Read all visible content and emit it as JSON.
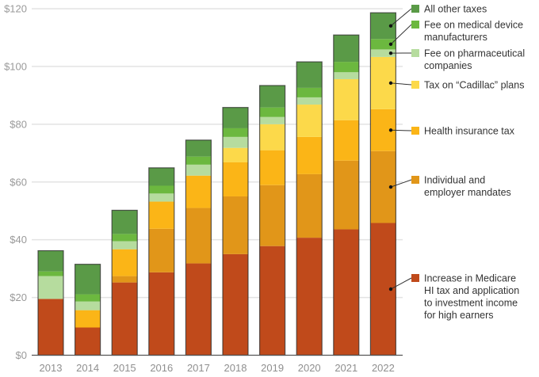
{
  "chart_data": {
    "type": "bar",
    "stacked": true,
    "title": "",
    "xlabel": "",
    "ylabel": "",
    "ylim": [
      0,
      120
    ],
    "yticks": [
      0,
      20,
      40,
      60,
      80,
      100,
      120
    ],
    "ytick_labels": [
      "$0",
      "$20",
      "$40",
      "$60",
      "$80",
      "$100",
      "$120"
    ],
    "grid": true,
    "legend_placement": "right",
    "categories": [
      "2013",
      "2014",
      "2015",
      "2016",
      "2017",
      "2018",
      "2019",
      "2020",
      "2021",
      "2022"
    ],
    "series": [
      {
        "name": "Increase in Medicare HI tax and application to investment income for high earners",
        "label_lines": [
          "Increase in Medicare",
          "HI tax and application",
          "to investment income",
          "for high earners"
        ],
        "color": "#c04a1b",
        "values": [
          19.5,
          9.6,
          25.2,
          28.7,
          31.8,
          35.0,
          37.8,
          40.7,
          43.6,
          45.8
        ]
      },
      {
        "name": "Individual and employer mandates",
        "label_lines": [
          "Individual and",
          "employer mandates"
        ],
        "color": "#e19619",
        "values": [
          0,
          0,
          2.2,
          15.1,
          19.2,
          20.0,
          21.1,
          22.0,
          23.8,
          24.9
        ]
      },
      {
        "name": "Health insurance tax",
        "label_lines": [
          "Health insurance tax"
        ],
        "color": "#fbb517",
        "values": [
          0,
          6.0,
          9.3,
          9.4,
          11.2,
          11.8,
          12.1,
          12.9,
          14.0,
          14.5
        ]
      },
      {
        "name": "Tax on “Cadillac” plans",
        "label_lines": [
          "Tax on “Cadillac” plans"
        ],
        "color": "#fcd94a",
        "values": [
          0,
          0,
          0,
          0,
          0,
          5.0,
          9.0,
          11.2,
          14.2,
          18.1
        ]
      },
      {
        "name": "Fee on pharmaceutical companies",
        "label_lines": [
          "Fee on pharmaceutical",
          "companies"
        ],
        "color": "#b6dc9e",
        "values": [
          7.9,
          3.0,
          2.8,
          2.8,
          3.8,
          3.8,
          2.5,
          2.5,
          2.4,
          2.6
        ]
      },
      {
        "name": "Fee on medical device manufacturers",
        "label_lines": [
          "Fee on medical device",
          "manufacturers"
        ],
        "color": "#6cb83f",
        "values": [
          1.6,
          2.5,
          2.5,
          2.7,
          2.8,
          3.0,
          3.3,
          3.3,
          3.6,
          3.6
        ]
      },
      {
        "name": "All other taxes",
        "label_lines": [
          "All other taxes"
        ],
        "color": "#5a9a47",
        "values": [
          7.2,
          10.4,
          8.2,
          6.2,
          5.7,
          7.2,
          7.6,
          9.0,
          9.3,
          9.1
        ]
      }
    ]
  }
}
